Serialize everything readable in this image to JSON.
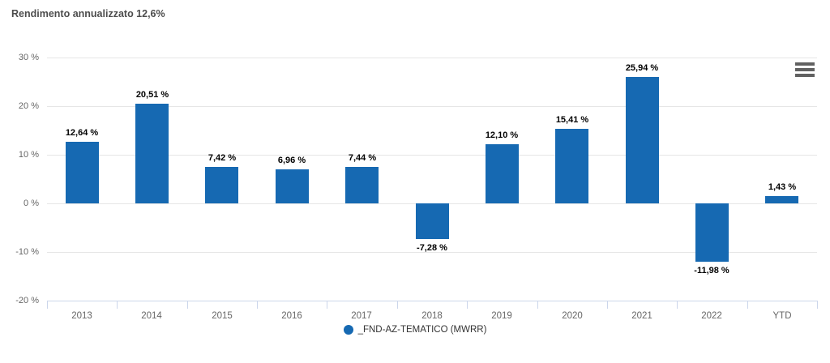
{
  "page": {
    "title": "Rendimento annualizzato 12,6%"
  },
  "toolbar": {
    "menu_icon": "hamburger-menu-icon",
    "menu_tooltip": "Chart context menu"
  },
  "legend": {
    "items": [
      {
        "label": "_FND-AZ-TEMATICO (MWRR)",
        "color": "#1669b2",
        "marker": "circle"
      }
    ]
  },
  "colors": {
    "bar": "#1669b2",
    "title_text": "#4d4d4d",
    "data_label_text": "#000000",
    "axis_label_text": "#666666",
    "gridline": "#e6e6e6",
    "axis_line": "#ccd6eb",
    "menu_icon": "#616161",
    "background": "#ffffff"
  },
  "chart_data": {
    "type": "bar",
    "title": "Rendimento annualizzato 12,6%",
    "categories": [
      "2013",
      "2014",
      "2015",
      "2016",
      "2017",
      "2018",
      "2019",
      "2020",
      "2021",
      "2022",
      "YTD"
    ],
    "series": [
      {
        "name": "_FND-AZ-TEMATICO (MWRR)",
        "color": "#1669b2",
        "values": [
          12.64,
          20.51,
          7.42,
          6.96,
          7.44,
          -7.28,
          12.1,
          15.41,
          25.94,
          -11.98,
          1.43
        ],
        "labels": [
          "12,64 %",
          "20,51 %",
          "7,42 %",
          "6,96 %",
          "7,44 %",
          "-7,28 %",
          "12,10 %",
          "15,41 %",
          "25,94 %",
          "-11,98 %",
          "1,43 %"
        ]
      }
    ],
    "xlabel": "",
    "ylabel": "",
    "ylim": [
      -20,
      30
    ],
    "yticks": [
      30,
      20,
      10,
      0,
      -10,
      -20
    ],
    "ytick_labels": [
      "30 %",
      "20 %",
      "10 %",
      "0 %",
      "-10 %",
      "-20 %"
    ],
    "grid": true,
    "legend_position": "bottom"
  }
}
